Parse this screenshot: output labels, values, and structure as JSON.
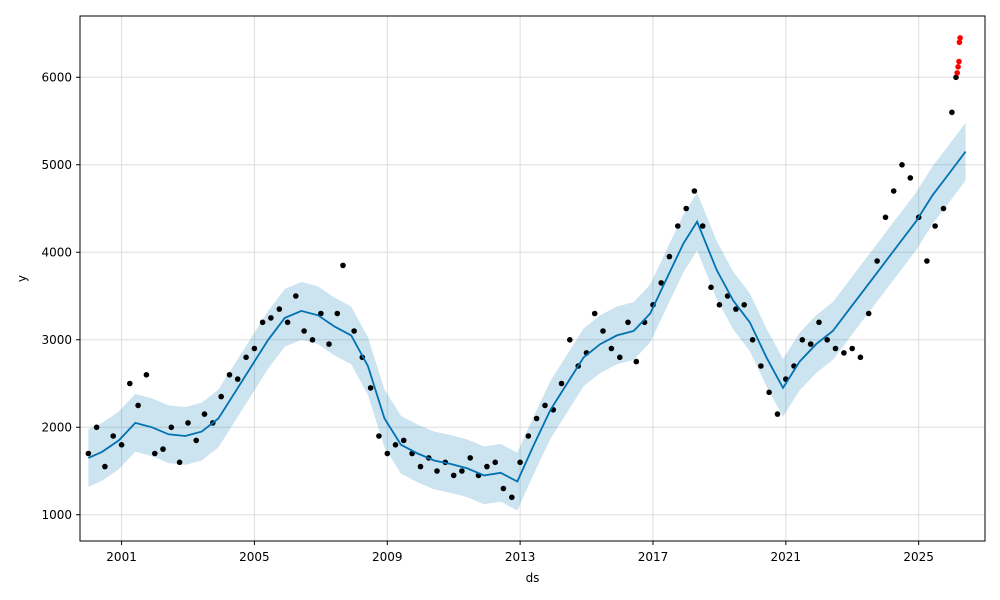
{
  "chart_data": {
    "type": "line",
    "xlabel": "ds",
    "ylabel": "y",
    "x_ticks": [
      "2001",
      "2005",
      "2009",
      "2013",
      "2017",
      "2021",
      "2025"
    ],
    "y_ticks": [
      "1000",
      "2000",
      "3000",
      "4000",
      "5000",
      "6000"
    ],
    "xlim": [
      "1999-10-01",
      "2026-12-31"
    ],
    "ylim": [
      700,
      6700
    ],
    "grid": true,
    "series": [
      {
        "kind": "forecast_line",
        "color": "#0072B2",
        "points": [
          [
            "2000-01-01",
            1650
          ],
          [
            "2000-06-01",
            1720
          ],
          [
            "2000-12-01",
            1850
          ],
          [
            "2001-06-01",
            2050
          ],
          [
            "2001-12-01",
            2000
          ],
          [
            "2002-06-01",
            1920
          ],
          [
            "2002-12-01",
            1900
          ],
          [
            "2003-06-01",
            1950
          ],
          [
            "2003-12-01",
            2100
          ],
          [
            "2004-06-01",
            2400
          ],
          [
            "2004-12-01",
            2700
          ],
          [
            "2005-06-01",
            3000
          ],
          [
            "2005-12-01",
            3250
          ],
          [
            "2006-06-01",
            3330
          ],
          [
            "2006-12-01",
            3280
          ],
          [
            "2007-06-01",
            3150
          ],
          [
            "2007-12-01",
            3050
          ],
          [
            "2008-06-01",
            2700
          ],
          [
            "2008-12-01",
            2100
          ],
          [
            "2009-06-01",
            1800
          ],
          [
            "2009-12-01",
            1700
          ],
          [
            "2010-06-01",
            1620
          ],
          [
            "2010-12-01",
            1580
          ],
          [
            "2011-06-01",
            1530
          ],
          [
            "2011-12-01",
            1450
          ],
          [
            "2012-06-01",
            1480
          ],
          [
            "2012-12-01",
            1380
          ],
          [
            "2013-06-01",
            1800
          ],
          [
            "2013-12-01",
            2200
          ],
          [
            "2014-06-01",
            2500
          ],
          [
            "2014-12-01",
            2800
          ],
          [
            "2015-06-01",
            2950
          ],
          [
            "2015-12-01",
            3050
          ],
          [
            "2016-06-01",
            3100
          ],
          [
            "2016-12-01",
            3300
          ],
          [
            "2017-06-01",
            3700
          ],
          [
            "2017-12-01",
            4100
          ],
          [
            "2018-05-01",
            4350
          ],
          [
            "2018-12-01",
            3800
          ],
          [
            "2019-06-01",
            3450
          ],
          [
            "2019-12-01",
            3200
          ],
          [
            "2020-06-01",
            2800
          ],
          [
            "2020-12-01",
            2450
          ],
          [
            "2021-06-01",
            2750
          ],
          [
            "2021-12-01",
            2950
          ],
          [
            "2022-06-01",
            3100
          ],
          [
            "2022-12-01",
            3350
          ],
          [
            "2023-06-01",
            3600
          ],
          [
            "2023-12-01",
            3850
          ],
          [
            "2024-06-01",
            4100
          ],
          [
            "2024-12-01",
            4350
          ],
          [
            "2025-06-01",
            4650
          ],
          [
            "2025-12-01",
            4900
          ],
          [
            "2026-06-01",
            5150
          ]
        ]
      },
      {
        "kind": "uncertainty_band",
        "color": "#0072B2",
        "half_width": 330
      },
      {
        "kind": "observed_points",
        "color": "#000000",
        "points": [
          [
            "2000-01-01",
            1700
          ],
          [
            "2000-04-01",
            2000
          ],
          [
            "2000-07-01",
            1550
          ],
          [
            "2000-10-01",
            1900
          ],
          [
            "2001-01-01",
            1800
          ],
          [
            "2001-04-01",
            2500
          ],
          [
            "2001-07-01",
            2250
          ],
          [
            "2001-10-01",
            2600
          ],
          [
            "2002-01-01",
            1700
          ],
          [
            "2002-04-01",
            1750
          ],
          [
            "2002-07-01",
            2000
          ],
          [
            "2002-10-01",
            1600
          ],
          [
            "2003-01-01",
            2050
          ],
          [
            "2003-04-01",
            1850
          ],
          [
            "2003-07-01",
            2150
          ],
          [
            "2003-10-01",
            2050
          ],
          [
            "2004-01-01",
            2350
          ],
          [
            "2004-04-01",
            2600
          ],
          [
            "2004-07-01",
            2550
          ],
          [
            "2004-10-01",
            2800
          ],
          [
            "2005-01-01",
            2900
          ],
          [
            "2005-04-01",
            3200
          ],
          [
            "2005-07-01",
            3250
          ],
          [
            "2005-10-01",
            3350
          ],
          [
            "2006-01-01",
            3200
          ],
          [
            "2006-04-01",
            3500
          ],
          [
            "2006-07-01",
            3100
          ],
          [
            "2006-10-01",
            3000
          ],
          [
            "2007-01-01",
            3300
          ],
          [
            "2007-04-01",
            2950
          ],
          [
            "2007-07-01",
            3300
          ],
          [
            "2007-09-01",
            3850
          ],
          [
            "2008-01-01",
            3100
          ],
          [
            "2008-04-01",
            2800
          ],
          [
            "2008-07-01",
            2450
          ],
          [
            "2008-10-01",
            1900
          ],
          [
            "2009-01-01",
            1700
          ],
          [
            "2009-04-01",
            1800
          ],
          [
            "2009-07-01",
            1850
          ],
          [
            "2009-10-01",
            1700
          ],
          [
            "2010-01-01",
            1550
          ],
          [
            "2010-04-01",
            1650
          ],
          [
            "2010-07-01",
            1500
          ],
          [
            "2010-10-01",
            1600
          ],
          [
            "2011-01-01",
            1450
          ],
          [
            "2011-04-01",
            1500
          ],
          [
            "2011-07-01",
            1650
          ],
          [
            "2011-10-01",
            1450
          ],
          [
            "2012-01-01",
            1550
          ],
          [
            "2012-04-01",
            1600
          ],
          [
            "2012-07-01",
            1300
          ],
          [
            "2012-10-01",
            1200
          ],
          [
            "2013-01-01",
            1600
          ],
          [
            "2013-04-01",
            1900
          ],
          [
            "2013-07-01",
            2100
          ],
          [
            "2013-10-01",
            2250
          ],
          [
            "2014-01-01",
            2200
          ],
          [
            "2014-04-01",
            2500
          ],
          [
            "2014-07-01",
            3000
          ],
          [
            "2014-10-01",
            2700
          ],
          [
            "2015-01-01",
            2850
          ],
          [
            "2015-04-01",
            3300
          ],
          [
            "2015-07-01",
            3100
          ],
          [
            "2015-10-01",
            2900
          ],
          [
            "2016-01-01",
            2800
          ],
          [
            "2016-04-01",
            3200
          ],
          [
            "2016-07-01",
            2750
          ],
          [
            "2016-10-01",
            3200
          ],
          [
            "2017-01-01",
            3400
          ],
          [
            "2017-04-01",
            3650
          ],
          [
            "2017-07-01",
            3950
          ],
          [
            "2017-10-01",
            4300
          ],
          [
            "2018-01-01",
            4500
          ],
          [
            "2018-04-01",
            4700
          ],
          [
            "2018-07-01",
            4300
          ],
          [
            "2018-10-01",
            3600
          ],
          [
            "2019-01-01",
            3400
          ],
          [
            "2019-04-01",
            3500
          ],
          [
            "2019-07-01",
            3350
          ],
          [
            "2019-10-01",
            3400
          ],
          [
            "2020-01-01",
            3000
          ],
          [
            "2020-04-01",
            2700
          ],
          [
            "2020-07-01",
            2400
          ],
          [
            "2020-10-01",
            2150
          ],
          [
            "2021-01-01",
            2550
          ],
          [
            "2021-04-01",
            2700
          ],
          [
            "2021-07-01",
            3000
          ],
          [
            "2021-10-01",
            2950
          ],
          [
            "2022-01-01",
            3200
          ],
          [
            "2022-04-01",
            3000
          ],
          [
            "2022-07-01",
            2900
          ],
          [
            "2022-10-01",
            2850
          ],
          [
            "2023-01-01",
            2900
          ],
          [
            "2023-04-01",
            2800
          ],
          [
            "2023-07-01",
            3300
          ],
          [
            "2023-10-01",
            3900
          ],
          [
            "2024-01-01",
            4400
          ],
          [
            "2024-04-01",
            4700
          ],
          [
            "2024-07-01",
            5000
          ],
          [
            "2024-10-01",
            4850
          ],
          [
            "2025-01-01",
            4400
          ],
          [
            "2025-04-01",
            3900
          ],
          [
            "2025-07-01",
            4300
          ],
          [
            "2025-10-01",
            4500
          ],
          [
            "2026-01-01",
            5600
          ],
          [
            "2026-02-15",
            6000
          ]
        ]
      },
      {
        "kind": "anomaly_points",
        "color": "#ff0000",
        "points": [
          [
            "2026-03-01",
            6050
          ],
          [
            "2026-03-10",
            6120
          ],
          [
            "2026-03-20",
            6180
          ],
          [
            "2026-03-25",
            6400
          ],
          [
            "2026-04-01",
            6450
          ]
        ]
      }
    ]
  }
}
